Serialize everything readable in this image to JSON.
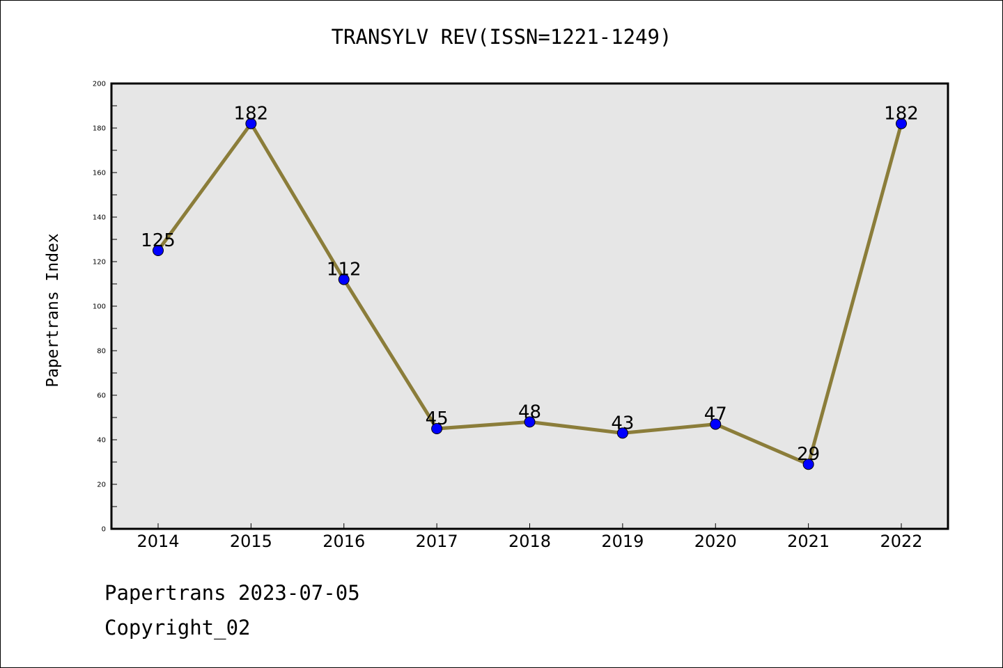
{
  "chart_data": {
    "type": "line",
    "title": "TRANSYLV REV(ISSN=1221-1249)",
    "xlabel": "",
    "ylabel": "Papertrans Index",
    "x": [
      "2014",
      "2015",
      "2016",
      "2017",
      "2018",
      "2019",
      "2020",
      "2021",
      "2022"
    ],
    "series": [
      {
        "values": [
          125,
          182,
          112,
          45,
          48,
          43,
          47,
          29,
          182
        ],
        "line_color": "#8B7D3A",
        "marker_color": "#0000FF"
      }
    ],
    "data_labels": [
      "125",
      "182",
      "112",
      "45",
      "48",
      "43",
      "47",
      "29",
      "182"
    ],
    "ylim": [
      0,
      200
    ],
    "yticks": [
      0,
      20,
      40,
      60,
      80,
      100,
      120,
      140,
      160,
      180,
      200
    ],
    "ytick_labels": [
      "0",
      "20",
      "40",
      "60",
      "80",
      "100",
      "120",
      "140",
      "160",
      "180",
      "200"
    ],
    "plot_background": "#E6E6E6",
    "grid": false,
    "legend": "none"
  },
  "footer": {
    "date_line": "Papertrans 2023-07-05",
    "copyright": "Copyright_02"
  }
}
